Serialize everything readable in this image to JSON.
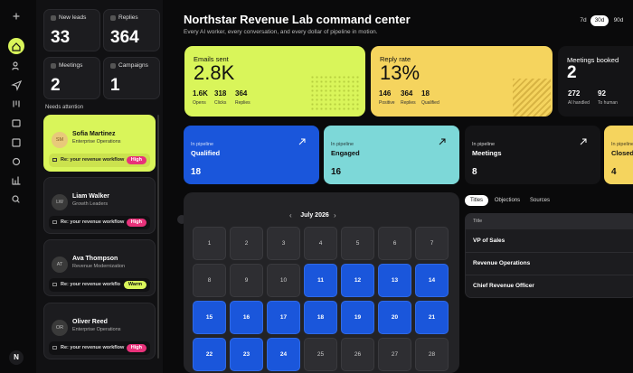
{
  "rail": {
    "logo": "N"
  },
  "stats": [
    {
      "label": "New leads",
      "value": 33
    },
    {
      "label": "Replies",
      "value": 364
    },
    {
      "label": "Meetings",
      "value": 2
    },
    {
      "label": "Campaigns",
      "value": 1
    }
  ],
  "attention": {
    "heading": "Needs attention",
    "leads": [
      {
        "initials": "SM",
        "name": "Sofia Martinez",
        "company": "Enterprise Operations",
        "subject": "Re: your revenue workflow",
        "priority": "High"
      },
      {
        "initials": "LW",
        "name": "Liam Walker",
        "company": "Growth Leaders",
        "subject": "Re: your revenue workflow",
        "priority": "High"
      },
      {
        "initials": "AT",
        "name": "Ava Thompson",
        "company": "Revenue Modernization",
        "subject": "Re: your revenue workflow",
        "priority": "Warm"
      },
      {
        "initials": "OR",
        "name": "Oliver Reed",
        "company": "Enterprise Operations",
        "subject": "Re: your revenue workflow",
        "priority": "High"
      }
    ]
  },
  "header": {
    "title": "Northstar Revenue Lab command center",
    "subtitle": "Every AI worker, every conversation, and every dollar of pipeline in motion.",
    "periods": [
      "7d",
      "30d",
      "90d"
    ],
    "selected_period": 1
  },
  "kpis": [
    {
      "label": "Emails sent",
      "value": "2.8K",
      "metrics": [
        {
          "value": "1.6K",
          "label": "Opens"
        },
        {
          "value": 318,
          "label": "Clicks"
        },
        {
          "value": 364,
          "label": "Replies"
        }
      ]
    },
    {
      "label": "Reply rate",
      "value": "13%",
      "metrics": [
        {
          "value": 146,
          "label": "Positive"
        },
        {
          "value": 364,
          "label": "Replies"
        },
        {
          "value": 18,
          "label": "Qualified"
        }
      ]
    },
    {
      "label": "Meetings booked",
      "value": 2,
      "metrics": [
        {
          "value": 272,
          "label": "AI handled"
        },
        {
          "value": 92,
          "label": "To human"
        }
      ]
    }
  ],
  "pipeline": [
    {
      "caption": "In pipeline",
      "stage": "Qualified",
      "count": 18
    },
    {
      "caption": "In pipeline",
      "stage": "Engaged",
      "count": 16
    },
    {
      "caption": "In pipeline",
      "stage": "Meetings",
      "count": 8
    },
    {
      "caption": "In pipeline",
      "stage": "Closed",
      "count": 4
    }
  ],
  "calendar": {
    "month": "July 2026",
    "days": [
      {
        "day": 1,
        "active": false
      },
      {
        "day": 2,
        "active": false
      },
      {
        "day": 3,
        "active": false
      },
      {
        "day": 4,
        "active": false
      },
      {
        "day": 5,
        "active": false
      },
      {
        "day": 6,
        "active": false
      },
      {
        "day": 7,
        "active": false
      },
      {
        "day": 8,
        "active": false
      },
      {
        "day": 9,
        "active": false
      },
      {
        "day": 10,
        "active": false
      },
      {
        "day": 11,
        "active": true
      },
      {
        "day": 12,
        "active": true
      },
      {
        "day": 13,
        "active": true
      },
      {
        "day": 14,
        "active": true
      },
      {
        "day": 15,
        "active": true
      },
      {
        "day": 16,
        "active": true
      },
      {
        "day": 17,
        "active": true
      },
      {
        "day": 18,
        "active": true
      },
      {
        "day": 19,
        "active": true
      },
      {
        "day": 20,
        "active": true
      },
      {
        "day": 21,
        "active": true
      },
      {
        "day": 22,
        "active": true
      },
      {
        "day": 23,
        "active": true
      },
      {
        "day": 24,
        "active": true
      },
      {
        "day": 25,
        "active": false
      },
      {
        "day": 26,
        "active": false
      },
      {
        "day": 27,
        "active": false
      },
      {
        "day": 28,
        "active": false
      }
    ]
  },
  "table": {
    "tabs": [
      "Titles",
      "Objections",
      "Sources"
    ],
    "selected_tab": 0,
    "header": "Title",
    "rows": [
      "VP of Sales",
      "Revenue Operations",
      "Chief Revenue Officer"
    ]
  }
}
